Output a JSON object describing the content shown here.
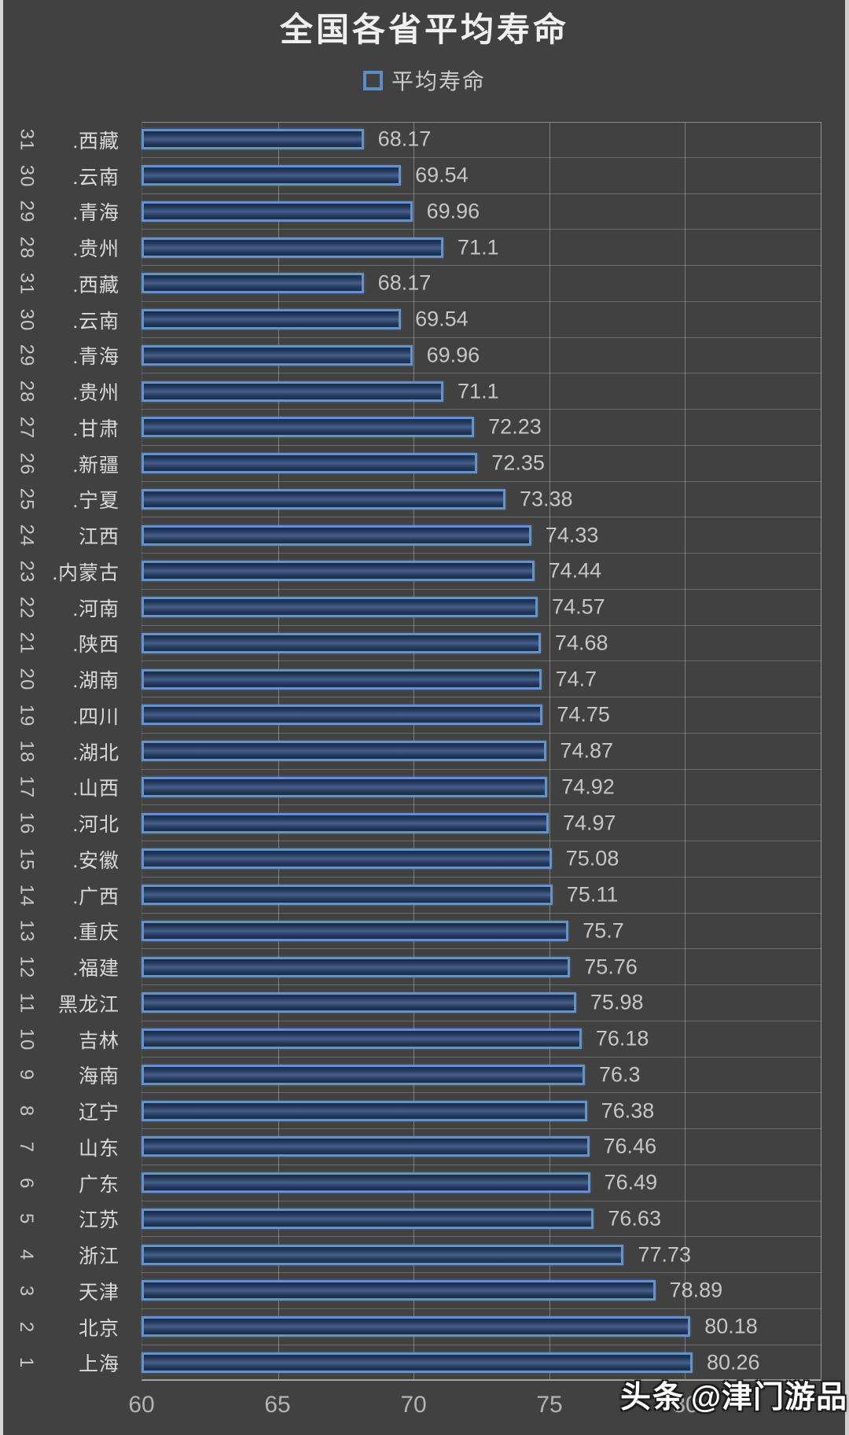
{
  "title": "全国各省平均寿命",
  "legend": {
    "label": "平均寿命",
    "swatch_color": "#5f8cc4"
  },
  "watermark": {
    "bold": "头条",
    "handle": "@津门游品"
  },
  "colors": {
    "background": "#414141",
    "bar_border": "#6493cc",
    "bar_fill_dark": "#1b2c49",
    "bar_fill_light": "#46608a",
    "gridline": "#7d7d7d",
    "value_text": "#c6c6c6",
    "label_text": "#dadada",
    "axis_text": "#b3b3b3",
    "title_text": "#f0f0f0"
  },
  "chart_data": {
    "type": "bar",
    "orientation": "horizontal",
    "title": "全国各省平均寿命",
    "series_name": "平均寿命",
    "xlabel": "",
    "ylabel": "",
    "grid": true,
    "legend_position": "top-center",
    "x_axis": {
      "min": 60,
      "max": 85,
      "ticks": [
        60,
        65,
        70,
        75,
        80
      ]
    },
    "rows": [
      {
        "rank": "31",
        "province": ".西藏",
        "value": 68.17,
        "label": "68.17"
      },
      {
        "rank": "30",
        "province": ".云南",
        "value": 69.54,
        "label": "69.54"
      },
      {
        "rank": "29",
        "province": ".青海",
        "value": 69.96,
        "label": "69.96"
      },
      {
        "rank": "28",
        "province": ".贵州",
        "value": 71.1,
        "label": "71.1"
      },
      {
        "rank": "31",
        "province": ".西藏",
        "value": 68.17,
        "label": "68.17"
      },
      {
        "rank": "30",
        "province": ".云南",
        "value": 69.54,
        "label": "69.54"
      },
      {
        "rank": "29",
        "province": ".青海",
        "value": 69.96,
        "label": "69.96"
      },
      {
        "rank": "28",
        "province": ".贵州",
        "value": 71.1,
        "label": "71.1"
      },
      {
        "rank": "27",
        "province": ".甘肃",
        "value": 72.23,
        "label": "72.23"
      },
      {
        "rank": "26",
        "province": ".新疆",
        "value": 72.35,
        "label": "72.35"
      },
      {
        "rank": "25",
        "province": ".宁夏",
        "value": 73.38,
        "label": "73.38"
      },
      {
        "rank": "24",
        "province": "江西",
        "value": 74.33,
        "label": "74.33"
      },
      {
        "rank": "23",
        "province": ".内蒙古",
        "value": 74.44,
        "label": "74.44"
      },
      {
        "rank": "22",
        "province": ".河南",
        "value": 74.57,
        "label": "74.57"
      },
      {
        "rank": "21",
        "province": ".陕西",
        "value": 74.68,
        "label": "74.68"
      },
      {
        "rank": "20",
        "province": ".湖南",
        "value": 74.7,
        "label": "74.7"
      },
      {
        "rank": "19",
        "province": ".四川",
        "value": 74.75,
        "label": "74.75"
      },
      {
        "rank": "18",
        "province": ".湖北",
        "value": 74.87,
        "label": "74.87"
      },
      {
        "rank": "17",
        "province": ".山西",
        "value": 74.92,
        "label": "74.92"
      },
      {
        "rank": "16",
        "province": ".河北",
        "value": 74.97,
        "label": "74.97"
      },
      {
        "rank": "15",
        "province": ".安徽",
        "value": 75.08,
        "label": "75.08"
      },
      {
        "rank": "14",
        "province": ".广西",
        "value": 75.11,
        "label": "75.11"
      },
      {
        "rank": "13",
        "province": ".重庆",
        "value": 75.7,
        "label": "75.7"
      },
      {
        "rank": "12",
        "province": ".福建",
        "value": 75.76,
        "label": "75.76"
      },
      {
        "rank": "11",
        "province": "黑龙江",
        "value": 75.98,
        "label": "75.98"
      },
      {
        "rank": "10",
        "province": "吉林",
        "value": 76.18,
        "label": "76.18"
      },
      {
        "rank": "9",
        "province": "海南",
        "value": 76.3,
        "label": "76.3"
      },
      {
        "rank": "8",
        "province": "辽宁",
        "value": 76.38,
        "label": "76.38"
      },
      {
        "rank": "7",
        "province": "山东",
        "value": 76.46,
        "label": "76.46"
      },
      {
        "rank": "6",
        "province": "广东",
        "value": 76.49,
        "label": "76.49"
      },
      {
        "rank": "5",
        "province": "江苏",
        "value": 76.63,
        "label": "76.63"
      },
      {
        "rank": "4",
        "province": "浙江",
        "value": 77.73,
        "label": "77.73"
      },
      {
        "rank": "3",
        "province": "天津",
        "value": 78.89,
        "label": "78.89"
      },
      {
        "rank": "2",
        "province": "北京",
        "value": 80.18,
        "label": "80.18"
      },
      {
        "rank": "1",
        "province": "上海",
        "value": 80.26,
        "label": "80.26"
      }
    ]
  }
}
